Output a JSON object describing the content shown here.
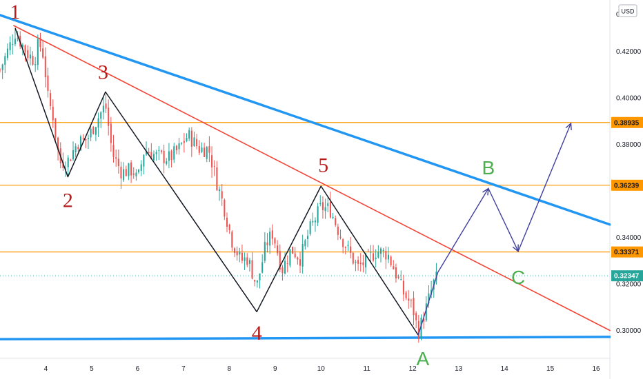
{
  "chart_data": {
    "type": "candlestick",
    "currency_button": "USD",
    "price_axis": {
      "ylim": [
        0.288,
        0.442
      ],
      "ticks": [
        "0.42000",
        "0.40000",
        "0.38000",
        "0.34000",
        "0.32000",
        "0.30000"
      ],
      "partial_top_label": "0.4"
    },
    "time_axis": {
      "xlim": [
        3.0,
        16.3
      ],
      "ticks": [
        "4",
        "5",
        "6",
        "7",
        "8",
        "9",
        "10",
        "11",
        "12",
        "13",
        "14",
        "15",
        "16"
      ]
    },
    "colors": {
      "up": "#26a69a",
      "down": "#ef5350",
      "trend_blue": "#2196f3",
      "trend_red": "#f44336",
      "level_orange": "#ff9800",
      "wave_red": "#b71c1c",
      "wave_green": "#4caf50",
      "projection": "#3f3f9f",
      "current_price": "#26a69a"
    },
    "horizontal_levels": [
      {
        "price": 0.38935,
        "label": "0.38935"
      },
      {
        "price": 0.36239,
        "label": "0.36239"
      },
      {
        "price": 0.33371,
        "label": "0.33371"
      }
    ],
    "current_price": {
      "price": 0.32347,
      "label": "0.32347"
    },
    "trendlines": [
      {
        "name": "upper-blue",
        "color": "#2196f3",
        "width": 3.5,
        "from": [
          3.0,
          0.4355
        ],
        "to": [
          16.3,
          0.3455
        ]
      },
      {
        "name": "lower-blue",
        "color": "#2196f3",
        "width": 3.5,
        "from": [
          3.0,
          0.2962
        ],
        "to": [
          16.3,
          0.2972
        ]
      },
      {
        "name": "red-descending",
        "color": "#f44336",
        "width": 1.6,
        "from": [
          3.3,
          0.431
        ],
        "to": [
          16.3,
          0.3
        ]
      }
    ],
    "wave_path": [
      [
        3.33,
        0.43
      ],
      [
        4.48,
        0.366
      ],
      [
        5.3,
        0.4025
      ],
      [
        8.6,
        0.308
      ],
      [
        10.0,
        0.362
      ],
      [
        12.12,
        0.298
      ]
    ],
    "projection_path": [
      [
        12.12,
        0.298
      ],
      [
        12.55,
        0.325
      ],
      [
        13.65,
        0.361
      ],
      [
        14.3,
        0.334
      ],
      [
        15.45,
        0.389
      ]
    ],
    "wave_labels": [
      {
        "text": "1",
        "x": 3.33,
        "price": 0.437,
        "color": "wave_red"
      },
      {
        "text": "2",
        "x": 4.48,
        "price": 0.356,
        "color": "wave_red"
      },
      {
        "text": "3",
        "x": 5.25,
        "price": 0.411,
        "color": "wave_red"
      },
      {
        "text": "4",
        "x": 8.6,
        "price": 0.299,
        "color": "wave_red"
      },
      {
        "text": "5",
        "x": 10.05,
        "price": 0.371,
        "color": "wave_red"
      },
      {
        "text": "A",
        "x": 12.22,
        "price": 0.288,
        "color": "wave_green"
      },
      {
        "text": "B",
        "x": 13.65,
        "price": 0.37,
        "color": "wave_green"
      },
      {
        "text": "C",
        "x": 14.3,
        "price": 0.323,
        "color": "wave_green"
      }
    ],
    "candle_anchors": [
      [
        3.0,
        0.412
      ],
      [
        3.33,
        0.428
      ],
      [
        3.6,
        0.419
      ],
      [
        3.75,
        0.416
      ],
      [
        3.85,
        0.424
      ],
      [
        3.95,
        0.418
      ],
      [
        4.05,
        0.399
      ],
      [
        4.15,
        0.393
      ],
      [
        4.3,
        0.372
      ],
      [
        4.48,
        0.373
      ],
      [
        4.7,
        0.381
      ],
      [
        4.9,
        0.382
      ],
      [
        5.1,
        0.39
      ],
      [
        5.3,
        0.397
      ],
      [
        5.45,
        0.376
      ],
      [
        5.65,
        0.368
      ],
      [
        5.9,
        0.369
      ],
      [
        6.0,
        0.364
      ],
      [
        6.15,
        0.378
      ],
      [
        6.4,
        0.375
      ],
      [
        6.7,
        0.374
      ],
      [
        6.9,
        0.378
      ],
      [
        7.1,
        0.384
      ],
      [
        7.35,
        0.378
      ],
      [
        7.55,
        0.378
      ],
      [
        7.75,
        0.362
      ],
      [
        7.9,
        0.352
      ],
      [
        8.05,
        0.339
      ],
      [
        8.25,
        0.33
      ],
      [
        8.4,
        0.331
      ],
      [
        8.6,
        0.319
      ],
      [
        8.8,
        0.337
      ],
      [
        8.95,
        0.342
      ],
      [
        9.15,
        0.326
      ],
      [
        9.35,
        0.335
      ],
      [
        9.55,
        0.331
      ],
      [
        9.75,
        0.343
      ],
      [
        10.0,
        0.353
      ],
      [
        10.2,
        0.352
      ],
      [
        10.4,
        0.342
      ],
      [
        10.6,
        0.334
      ],
      [
        10.8,
        0.327
      ],
      [
        11.0,
        0.33
      ],
      [
        11.2,
        0.334
      ],
      [
        11.45,
        0.333
      ],
      [
        11.6,
        0.326
      ],
      [
        11.8,
        0.316
      ],
      [
        12.0,
        0.31
      ],
      [
        12.12,
        0.299
      ],
      [
        12.3,
        0.31
      ],
      [
        12.45,
        0.32
      ],
      [
        12.55,
        0.3235
      ]
    ]
  }
}
